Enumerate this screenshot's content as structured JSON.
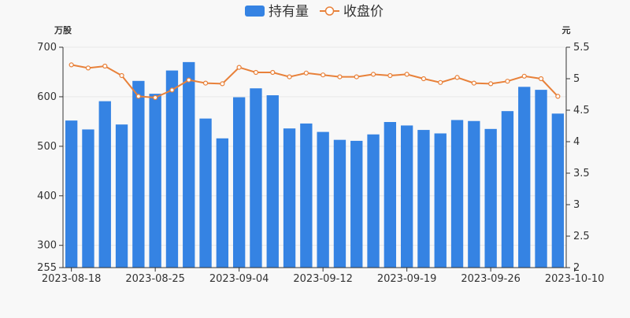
{
  "chart_data": {
    "type": "bar+line",
    "legend": {
      "position": "top-center",
      "items": [
        {
          "label": "持有量",
          "kind": "bar",
          "color": "#3583e3"
        },
        {
          "label": "收盘价",
          "kind": "line",
          "color": "#e8813a"
        }
      ]
    },
    "unit_left": "万股",
    "unit_right": "元",
    "ylim_left": [
      255,
      700
    ],
    "yticks_left": [
      255,
      300,
      400,
      500,
      600,
      700
    ],
    "ylim_right": [
      2,
      5.5
    ],
    "yticks_right": [
      "2",
      "2.5",
      "3",
      "3.5",
      "4",
      "4.5",
      "5",
      "5.5"
    ],
    "x_tick_labels": [
      {
        "index": 0,
        "label": "2023-08-18"
      },
      {
        "index": 5,
        "label": "2023-08-25"
      },
      {
        "index": 10,
        "label": "2023-09-04"
      },
      {
        "index": 15,
        "label": "2023-09-12"
      },
      {
        "index": 20,
        "label": "2023-09-19"
      },
      {
        "index": 25,
        "label": "2023-09-26"
      },
      {
        "index": 30,
        "label": "2023-10-10"
      }
    ],
    "holdings": [
      552,
      534,
      591,
      544,
      632,
      606,
      653,
      670,
      556,
      516,
      599,
      617,
      603,
      536,
      546,
      529,
      513,
      511,
      524,
      549,
      542,
      533,
      526,
      553,
      551,
      535,
      571,
      620,
      614,
      566
    ],
    "close": [
      5.22,
      5.17,
      5.2,
      5.05,
      4.72,
      4.7,
      4.82,
      4.98,
      4.93,
      4.92,
      5.18,
      5.1,
      5.1,
      5.03,
      5.09,
      5.06,
      5.03,
      5.03,
      5.07,
      5.05,
      5.07,
      5.0,
      4.94,
      5.02,
      4.93,
      4.92,
      4.96,
      5.04,
      5.0,
      4.72
    ],
    "colors": {
      "bar": "#3583e3",
      "line": "#e8813a",
      "axis": "#333333",
      "grid": "#e8e8e8"
    }
  }
}
